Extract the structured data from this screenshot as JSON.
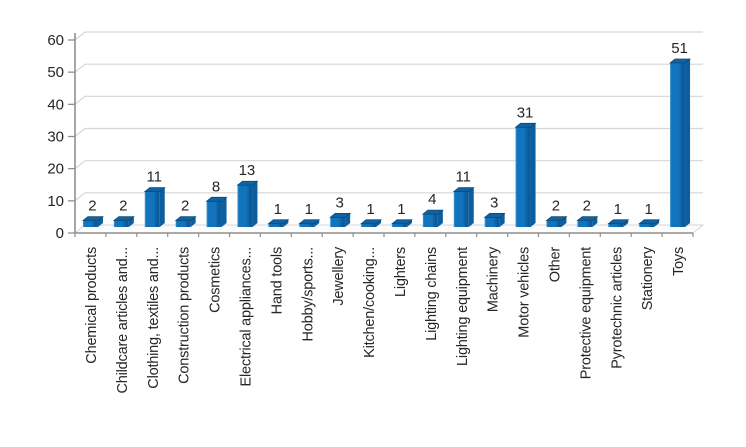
{
  "chart_data": {
    "type": "bar",
    "style": "3d-column",
    "title": "",
    "xlabel": "",
    "ylabel": "",
    "legend": false,
    "grid": true,
    "ylim": [
      0,
      60
    ],
    "yticks": [
      0,
      10,
      20,
      30,
      40,
      50,
      60
    ],
    "categories": [
      "Chemical products",
      "Childcare articles and...",
      "Clothing, textiles and...",
      "Construction products",
      "Cosmetics",
      "Electrical appliances...",
      "Hand tools",
      "Hobby/sports...",
      "Jewellery",
      "Kitchen/cooking...",
      "Lighters",
      "Lighting chains",
      "Lighting equipment",
      "Machinery",
      "Motor vehicles",
      "Other",
      "Protective equipment",
      "Pyrotechnic articles",
      "Stationery",
      "Toys"
    ],
    "values": [
      2,
      2,
      11,
      2,
      8,
      13,
      1,
      1,
      3,
      1,
      1,
      4,
      11,
      3,
      31,
      2,
      2,
      1,
      1,
      51
    ],
    "colors": {
      "bar_face": "#1174BC",
      "bar_face_light": "#4D9AD2",
      "bar_face_dark": "#0B5B9C",
      "bar_side": "#0C5E9E",
      "bar_top": "#0F63A4",
      "bar_edge_dark": "#0A456F",
      "gridline": "#D6D6D6",
      "axis": "#8F8F8F",
      "floor_fill": "#FCFCFC",
      "label_text": "#262626",
      "background": "#FFFFFF"
    }
  }
}
